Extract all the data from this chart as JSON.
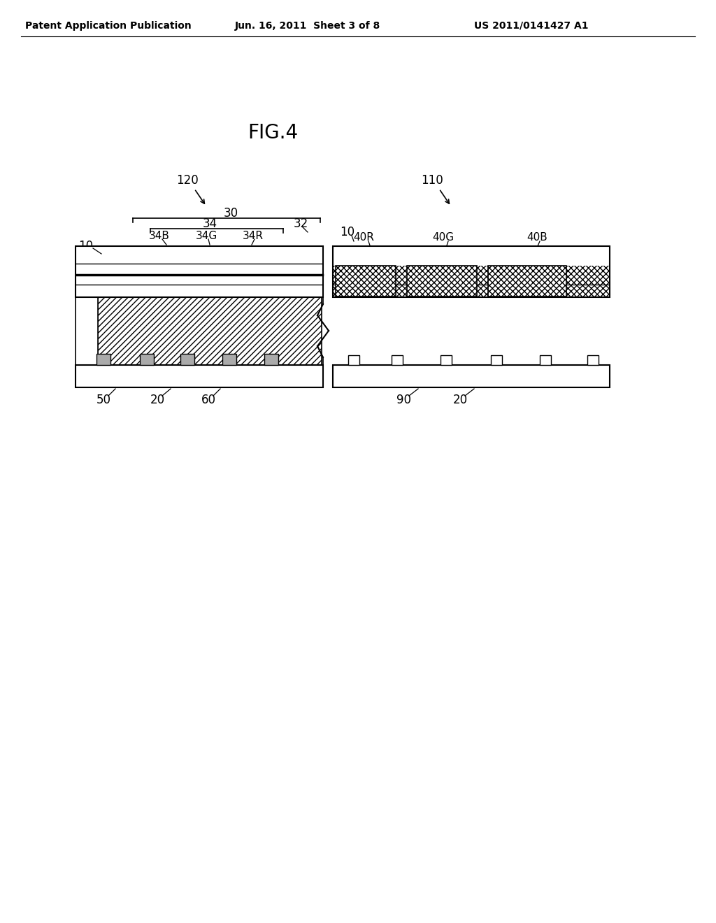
{
  "bg_color": "#ffffff",
  "title": "FIG.4",
  "header_left": "Patent Application Publication",
  "header_center": "Jun. 16, 2011  Sheet 3 of 8",
  "header_right": "US 2011/0141427 A1",
  "fig_width": 10.24,
  "fig_height": 13.2,
  "dpi": 100
}
